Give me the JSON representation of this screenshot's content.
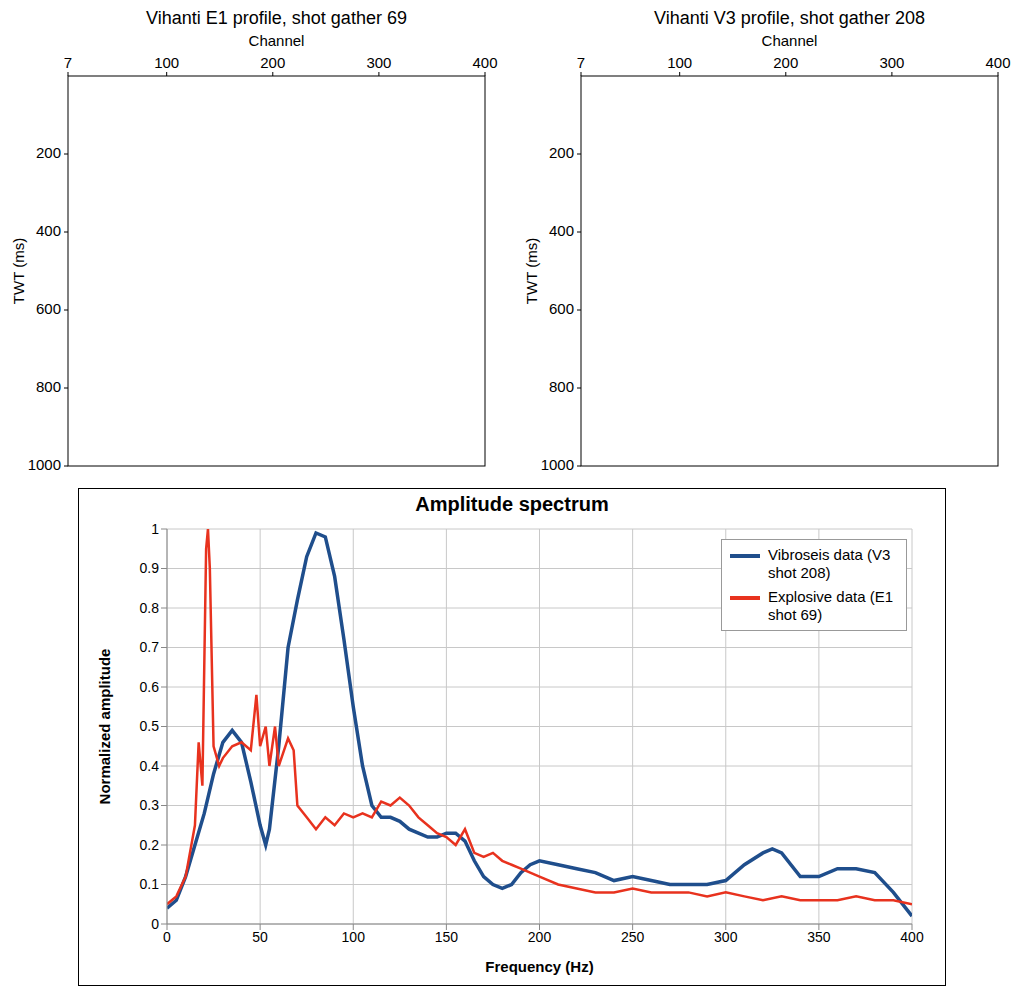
{
  "chart_data": [
    {
      "type": "seismic",
      "title": "Vihanti E1 profile, shot gather 69",
      "x_label": "Channel",
      "y_label": "TWT (ms)",
      "xlim": [
        7,
        400
      ],
      "xticks": [
        7,
        100,
        200,
        300,
        400
      ],
      "ylim": [
        0,
        1000
      ],
      "yticks": [
        200,
        400,
        600,
        800,
        1000
      ]
    },
    {
      "type": "seismic",
      "title": "Vihanti V3 profile, shot gather 208",
      "x_label": "Channel",
      "y_label": "TWT (ms)",
      "xlim": [
        7,
        400
      ],
      "xticks": [
        7,
        100,
        200,
        300,
        400
      ],
      "ylim": [
        0,
        1000
      ],
      "yticks": [
        200,
        400,
        600,
        800,
        1000
      ]
    },
    {
      "type": "line",
      "title": "Amplitude spectrum",
      "x_label": "Frequency (Hz)",
      "y_label": "Normalized amplitude",
      "xlim": [
        0,
        400
      ],
      "xticks": [
        0,
        50,
        100,
        150,
        200,
        250,
        300,
        350,
        400
      ],
      "ylim": [
        0,
        1
      ],
      "yticks": [
        0,
        0.1,
        0.2,
        0.3,
        0.4,
        0.5,
        0.6,
        0.7,
        0.8,
        0.9,
        1
      ],
      "grid": true,
      "legend": "top-right",
      "series": [
        {
          "name": "Vibroseis data (V3 shot 208)",
          "color": "#1f4e8c",
          "x": [
            0,
            5,
            10,
            15,
            20,
            25,
            30,
            35,
            40,
            45,
            50,
            53,
            55,
            60,
            65,
            70,
            75,
            80,
            85,
            90,
            95,
            100,
            105,
            110,
            115,
            120,
            125,
            130,
            135,
            140,
            145,
            150,
            155,
            160,
            165,
            170,
            175,
            180,
            185,
            190,
            195,
            200,
            210,
            220,
            230,
            240,
            250,
            260,
            270,
            280,
            290,
            300,
            310,
            320,
            325,
            330,
            340,
            350,
            360,
            370,
            380,
            390,
            400
          ],
          "values": [
            0.04,
            0.06,
            0.12,
            0.2,
            0.28,
            0.38,
            0.46,
            0.49,
            0.46,
            0.36,
            0.25,
            0.2,
            0.24,
            0.45,
            0.7,
            0.82,
            0.93,
            0.99,
            0.98,
            0.88,
            0.72,
            0.55,
            0.4,
            0.3,
            0.27,
            0.27,
            0.26,
            0.24,
            0.23,
            0.22,
            0.22,
            0.23,
            0.23,
            0.21,
            0.16,
            0.12,
            0.1,
            0.09,
            0.1,
            0.13,
            0.15,
            0.16,
            0.15,
            0.14,
            0.13,
            0.11,
            0.12,
            0.11,
            0.1,
            0.1,
            0.1,
            0.11,
            0.15,
            0.18,
            0.19,
            0.18,
            0.12,
            0.12,
            0.14,
            0.14,
            0.13,
            0.08,
            0.02
          ]
        },
        {
          "name": "Explosive data (E1 shot 69)",
          "color": "#e8321e",
          "x": [
            0,
            5,
            10,
            15,
            17,
            19,
            21,
            22,
            23,
            25,
            28,
            30,
            35,
            40,
            45,
            48,
            50,
            53,
            55,
            58,
            60,
            65,
            68,
            70,
            75,
            80,
            85,
            90,
            95,
            100,
            105,
            110,
            115,
            120,
            125,
            130,
            135,
            140,
            145,
            150,
            155,
            160,
            165,
            170,
            175,
            180,
            185,
            190,
            195,
            200,
            210,
            220,
            230,
            240,
            250,
            260,
            270,
            280,
            290,
            300,
            310,
            320,
            330,
            340,
            350,
            360,
            370,
            380,
            390,
            400
          ],
          "values": [
            0.05,
            0.07,
            0.12,
            0.25,
            0.46,
            0.35,
            0.95,
            1,
            0.9,
            0.45,
            0.4,
            0.42,
            0.45,
            0.46,
            0.44,
            0.58,
            0.45,
            0.5,
            0.4,
            0.5,
            0.4,
            0.47,
            0.44,
            0.3,
            0.27,
            0.24,
            0.27,
            0.25,
            0.28,
            0.27,
            0.28,
            0.27,
            0.31,
            0.3,
            0.32,
            0.3,
            0.27,
            0.25,
            0.23,
            0.22,
            0.2,
            0.24,
            0.18,
            0.17,
            0.18,
            0.16,
            0.15,
            0.14,
            0.13,
            0.12,
            0.1,
            0.09,
            0.08,
            0.08,
            0.09,
            0.08,
            0.08,
            0.08,
            0.07,
            0.08,
            0.07,
            0.06,
            0.07,
            0.06,
            0.06,
            0.06,
            0.07,
            0.06,
            0.06,
            0.05
          ]
        }
      ]
    }
  ]
}
